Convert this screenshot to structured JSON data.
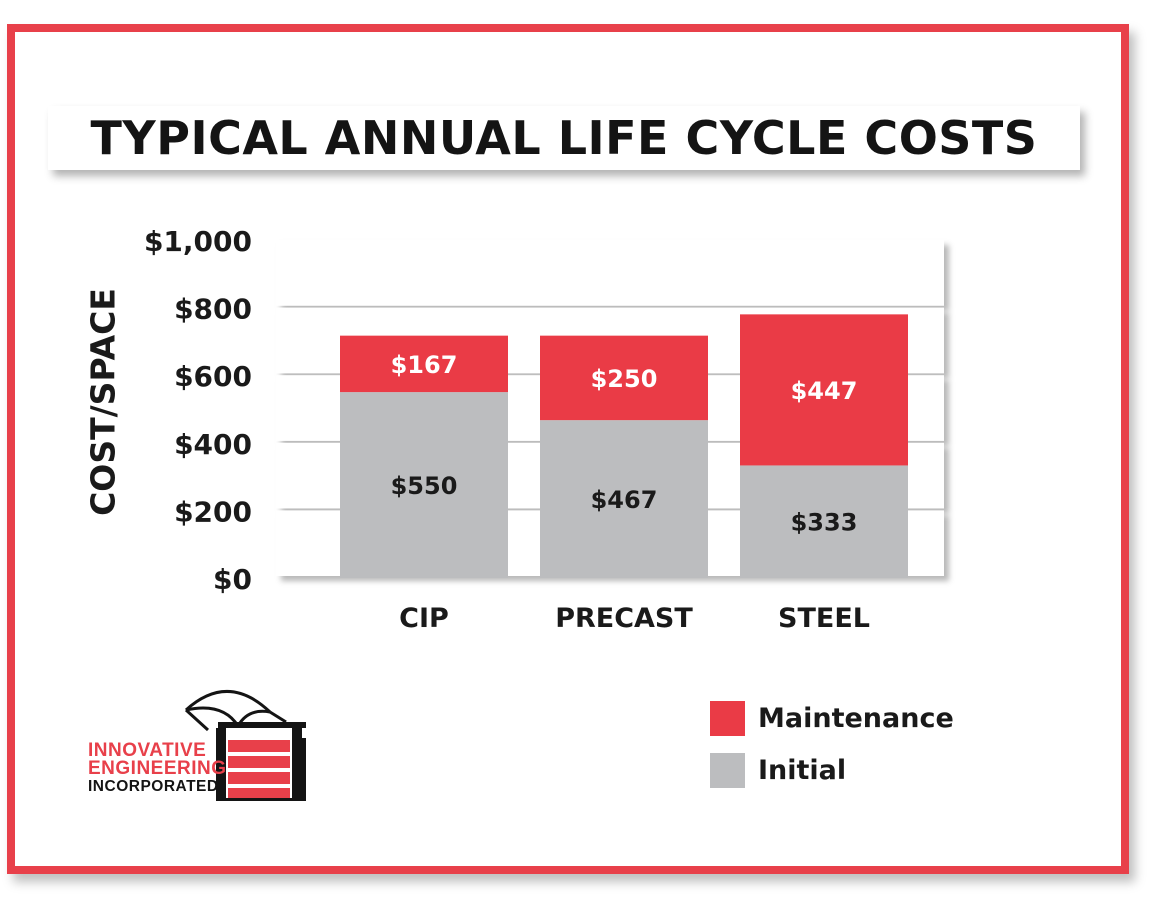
{
  "chart_data": {
    "type": "bar",
    "stacked": true,
    "title": "TYPICAL ANNUAL LIFE CYCLE COSTS",
    "ylabel": "COST/SPACE",
    "xlabel": "",
    "categories": [
      "CIP",
      "PRECAST",
      "STEEL"
    ],
    "ylim": [
      0,
      1000
    ],
    "y_ticks": [
      0,
      200,
      400,
      600,
      800,
      1000
    ],
    "y_tick_labels": [
      "$0",
      "$200",
      "$400",
      "$600",
      "$800",
      "$1,000"
    ],
    "series": [
      {
        "name": "Initial",
        "color": "#bcbdbf",
        "values": [
          550,
          467,
          333
        ],
        "labels": [
          "$550",
          "$467",
          "$333"
        ]
      },
      {
        "name": "Maintenance",
        "color": "#ea3b46",
        "values": [
          167,
          250,
          447
        ],
        "labels": [
          "$167",
          "$250",
          "$447"
        ]
      }
    ],
    "grid": true,
    "legend_position": "bottom-right"
  },
  "legend": {
    "items": [
      {
        "label": "Maintenance",
        "color": "#ea3b46"
      },
      {
        "label": "Initial",
        "color": "#bcbdbf"
      }
    ]
  },
  "logo": {
    "line1": "INNOVATIVE",
    "line2": "ENGINEERING",
    "line3": "INCORPORATED",
    "icon": "parking-structure-logo-icon"
  },
  "colors": {
    "frame": "#e8404a",
    "maintenance": "#ea3b46",
    "initial": "#bcbdbf"
  }
}
